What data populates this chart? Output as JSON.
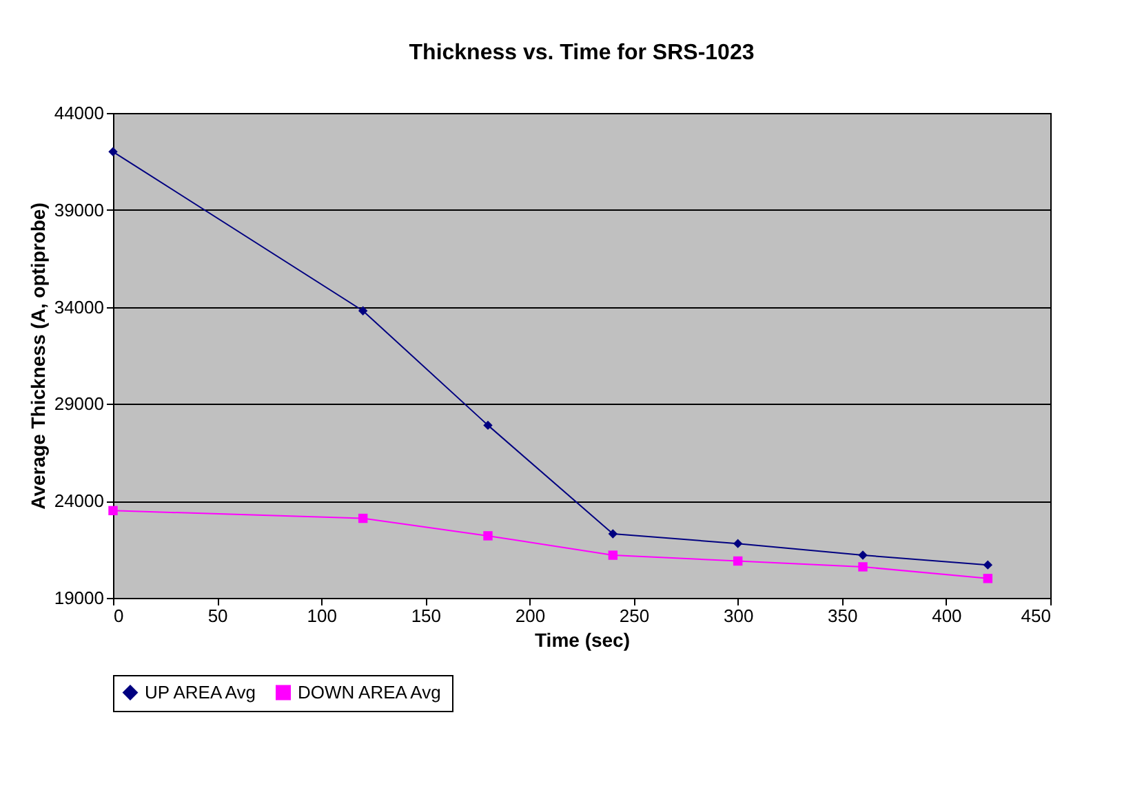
{
  "chart_data": {
    "type": "line",
    "title": "Thickness vs. Time for SRS-1023",
    "xlabel": "Time (sec)",
    "ylabel": "Average Thickness (A, optiprobe)",
    "x": [
      0,
      120,
      180,
      240,
      300,
      360,
      420
    ],
    "series": [
      {
        "name": "UP AREA Avg",
        "color": "#000080",
        "marker": "diamond",
        "values": [
          42000,
          33800,
          27900,
          22300,
          21800,
          21200,
          20700
        ]
      },
      {
        "name": "DOWN AREA Avg",
        "color": "#ff00ff",
        "marker": "square",
        "values": [
          23500,
          23100,
          22200,
          21200,
          20900,
          20600,
          20000
        ]
      }
    ],
    "xlim": [
      0,
      450
    ],
    "xticks": [
      0,
      50,
      100,
      150,
      200,
      250,
      300,
      350,
      400,
      450
    ],
    "ylim": [
      19000,
      44000
    ],
    "yticks": [
      19000,
      24000,
      29000,
      34000,
      39000,
      44000
    ],
    "grid": "y",
    "legend": "bottom"
  }
}
